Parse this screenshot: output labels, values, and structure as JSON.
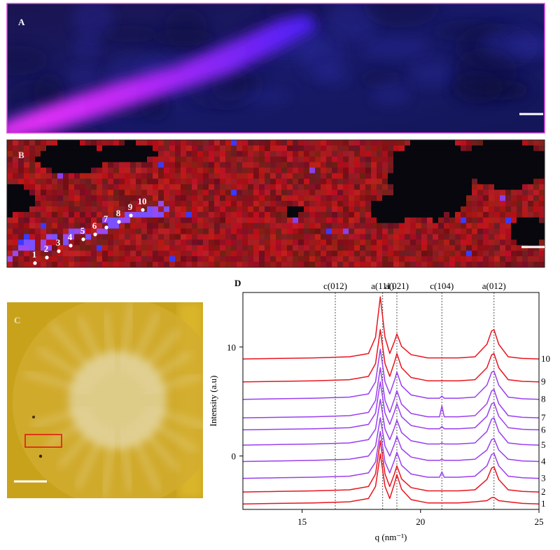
{
  "panel_labels": {
    "a": "A",
    "b": "B",
    "c": "C",
    "d": "D"
  },
  "map_points": [
    "1",
    "2",
    "3",
    "4",
    "5",
    "6",
    "7",
    "8",
    "9",
    "10"
  ],
  "chart_data": {
    "type": "line",
    "xlabel": "q (nm⁻¹)",
    "ylabel": "Intensity (a.u)",
    "xlim": [
      12.5,
      25
    ],
    "xticks": [
      15,
      20,
      25
    ],
    "ylim": [
      -4.9,
      15
    ],
    "yticks": [
      0,
      10
    ],
    "reference_lines": [
      {
        "label": "c(012)",
        "x": 16.4
      },
      {
        "label": "a(111)",
        "x": 18.4
      },
      {
        "label": "a(021)",
        "x": 19.0
      },
      {
        "label": "c(104)",
        "x": 20.9
      },
      {
        "label": "a(012)",
        "x": 23.1
      }
    ],
    "x": [
      12.5,
      14,
      15.5,
      17,
      17.8,
      18.1,
      18.3,
      18.5,
      18.7,
      18.9,
      19.0,
      19.2,
      19.6,
      20.3,
      20.8,
      20.9,
      21.0,
      21.6,
      22.3,
      22.8,
      23.0,
      23.1,
      23.3,
      23.7,
      24.3,
      25
    ],
    "series": [
      {
        "name": "1",
        "color": "#e8141e",
        "values": [
          -4.4,
          -4.35,
          -4.3,
          -4.2,
          -3.9,
          -2.79,
          0.2,
          -2.79,
          -3.9,
          -2.51,
          -1.7,
          -3.05,
          -4.0,
          -4.3,
          -4.3,
          -4.3,
          -4.3,
          -4.3,
          -4.2,
          -4.1,
          -3.83,
          -3.8,
          -4.1,
          -4.2,
          -4.35,
          -4.4
        ]
      },
      {
        "name": "2",
        "color": "#e8141e",
        "values": [
          -3.3,
          -3.25,
          -3.2,
          -3.1,
          -2.8,
          -1.65,
          1.4,
          -1.65,
          -2.8,
          -1.62,
          -0.9,
          -2.1,
          -2.9,
          -3.2,
          -3.2,
          -3.2,
          -3.2,
          -3.2,
          -3.1,
          -2.15,
          -1.11,
          -1.0,
          -2.15,
          -3.1,
          -3.25,
          -3.3
        ]
      },
      {
        "name": "3",
        "color": "#9a3ef0",
        "values": [
          -2.05,
          -2.0,
          -1.95,
          -1.85,
          -1.55,
          -0.55,
          2.25,
          -0.55,
          -1.55,
          -0.37,
          0.35,
          -0.85,
          -1.65,
          -1.95,
          -1.95,
          -1.45,
          -1.95,
          -1.95,
          -1.85,
          -0.9,
          0.14,
          0.25,
          -0.9,
          -1.85,
          -2.0,
          -2.05
        ]
      },
      {
        "name": "4",
        "color": "#9a3ef0",
        "values": [
          -0.5,
          -0.45,
          -0.4,
          -0.3,
          0.0,
          0.9,
          3.5,
          0.9,
          0.0,
          1.11,
          1.8,
          0.65,
          -0.1,
          -0.4,
          -0.4,
          -0.3,
          -0.4,
          -0.4,
          -0.3,
          0.55,
          1.5,
          1.6,
          0.55,
          -0.3,
          -0.45,
          -0.5
        ]
      },
      {
        "name": "5",
        "color": "#9a3ef0",
        "values": [
          1.0,
          1.05,
          1.1,
          1.2,
          1.5,
          2.47,
          5.2,
          2.47,
          1.5,
          2.61,
          3.3,
          2.15,
          1.4,
          1.1,
          1.1,
          1.2,
          1.1,
          1.1,
          1.2,
          2.25,
          3.38,
          3.5,
          2.25,
          1.2,
          1.05,
          1.0
        ]
      },
      {
        "name": "6",
        "color": "#9a3ef0",
        "values": [
          2.4,
          2.45,
          2.5,
          2.6,
          2.9,
          3.94,
          6.8,
          3.94,
          2.9,
          4.08,
          4.8,
          3.6,
          2.8,
          2.5,
          2.5,
          2.7,
          2.5,
          2.5,
          2.6,
          3.65,
          4.78,
          4.9,
          3.65,
          2.6,
          2.45,
          2.4
        ]
      },
      {
        "name": "7",
        "color": "#9a3ef0",
        "values": [
          3.5,
          3.55,
          3.6,
          3.7,
          4.0,
          5.11,
          8.1,
          5.11,
          4.0,
          5.25,
          6.0,
          4.75,
          3.9,
          3.6,
          3.6,
          4.6,
          3.6,
          3.6,
          3.7,
          4.8,
          5.97,
          6.1,
          4.8,
          3.7,
          3.55,
          3.5
        ]
      },
      {
        "name": "8",
        "color": "#9a3ef0",
        "values": [
          5.2,
          5.25,
          5.3,
          5.4,
          5.7,
          6.81,
          9.8,
          6.81,
          5.7,
          6.95,
          7.7,
          6.45,
          5.6,
          5.3,
          5.3,
          5.5,
          5.3,
          5.3,
          5.4,
          6.5,
          7.67,
          7.8,
          6.5,
          5.4,
          5.25,
          5.2
        ]
      },
      {
        "name": "9",
        "color": "#e8141e",
        "values": [
          6.8,
          6.85,
          6.9,
          7.0,
          7.3,
          8.48,
          11.6,
          8.48,
          7.3,
          8.62,
          9.4,
          8.1,
          7.2,
          6.9,
          6.9,
          6.9,
          6.9,
          6.9,
          7.0,
          8.1,
          9.27,
          9.4,
          8.1,
          7.0,
          6.85,
          6.8
        ]
      },
      {
        "name": "10",
        "color": "#e8141e",
        "values": [
          8.9,
          8.95,
          9.0,
          9.1,
          9.4,
          10.9,
          14.6,
          10.9,
          9.4,
          10.51,
          11.2,
          10.05,
          9.3,
          9.0,
          9.0,
          9.0,
          9.0,
          9.0,
          9.1,
          10.25,
          11.47,
          11.6,
          10.25,
          9.1,
          8.95,
          8.9
        ]
      }
    ]
  }
}
